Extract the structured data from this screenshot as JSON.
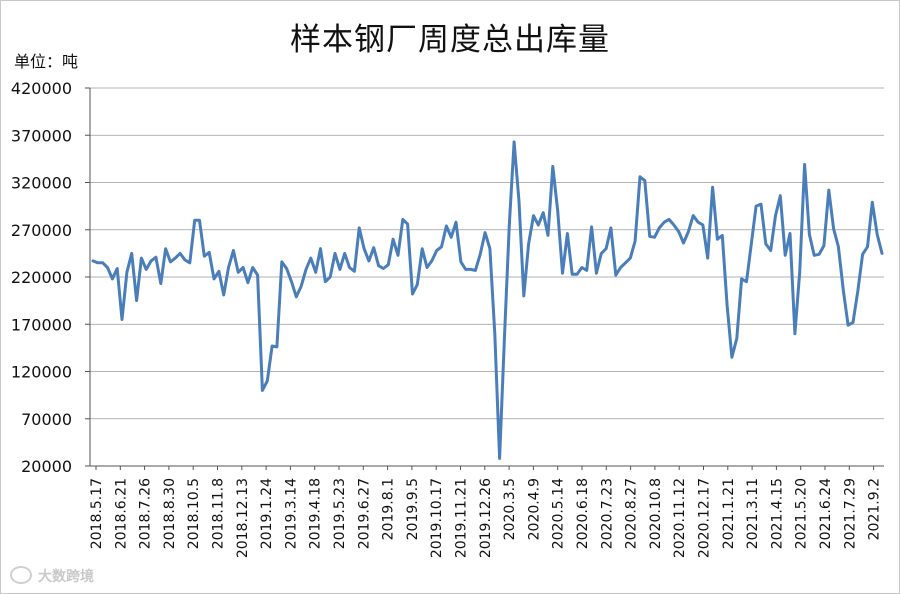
{
  "chart_data": {
    "type": "line",
    "title": "样本钢厂周度总出库量",
    "unit_label": "单位：吨",
    "xlabel": "",
    "ylabel": "",
    "ylim": [
      20000,
      420000
    ],
    "y_ticks": [
      "20000",
      "70000",
      "120000",
      "170000",
      "220000",
      "270000",
      "320000",
      "370000",
      "420000"
    ],
    "grid": "horizontal",
    "legend": "none",
    "line_color": "#4a7ebb",
    "x_tick_labels": [
      "2018.5.17",
      "2018.6.21",
      "2018.7.26",
      "2018.8.30",
      "2018.10.5",
      "2018.11.8",
      "2018.12.13",
      "2019.1.24",
      "2019.3.14",
      "2019.4.18",
      "2019.5.23",
      "2019.6.27",
      "2019.8.1",
      "2019.9.5",
      "2019.10.17",
      "2019.11.21",
      "2019.12.26",
      "2020.3.5",
      "2020.4.9",
      "2020.5.14",
      "2020.6.18",
      "2020.7.23",
      "2020.8.27",
      "2020.10.8",
      "2020.11.12",
      "2020.12.17",
      "2021.1.21",
      "2021.3.11",
      "2021.4.15",
      "2021.5.20",
      "2021.6.24",
      "2021.7.29",
      "2021.9.2"
    ],
    "series": [
      {
        "values": [
          237000,
          235000,
          235000,
          230000,
          218000,
          229000,
          175000,
          225000,
          245000,
          195000,
          240000,
          228000,
          237000,
          241000,
          213000,
          250000,
          236000,
          240000,
          245000,
          238000,
          235000,
          280000,
          280000,
          242000,
          246000,
          218000,
          226000,
          201000,
          230000,
          248000,
          225000,
          230000,
          214000,
          230000,
          222000,
          100000,
          110000,
          147000,
          146000,
          236000,
          229000,
          215000,
          199000,
          210000,
          228000,
          240000,
          225000,
          250000,
          215000,
          220000,
          245000,
          228000,
          245000,
          230000,
          226000,
          272000,
          250000,
          237000,
          251000,
          232000,
          229000,
          233000,
          260000,
          243000,
          281000,
          276000,
          202000,
          212000,
          250000,
          230000,
          237000,
          248000,
          252000,
          274000,
          262000,
          278000,
          236000,
          228000,
          228000,
          227000,
          244000,
          267000,
          250000,
          160000,
          28000,
          155000,
          275000,
          363000,
          300000,
          200000,
          255000,
          285000,
          275000,
          288000,
          264000,
          337000,
          290000,
          224000,
          266000,
          223000,
          223000,
          230000,
          227000,
          273000,
          224000,
          245000,
          250000,
          272000,
          222000,
          230000,
          235000,
          240000,
          258000,
          326000,
          322000,
          263000,
          262000,
          272000,
          278000,
          281000,
          275000,
          268000,
          256000,
          268000,
          285000,
          278000,
          275000,
          240000,
          315000,
          260000,
          264000,
          190000,
          135000,
          155000,
          218000,
          215000,
          255000,
          295000,
          297000,
          255000,
          248000,
          285000,
          306000,
          243000,
          266000,
          160000,
          225000,
          339000,
          265000,
          243000,
          244000,
          253000,
          312000,
          271000,
          252000,
          206000,
          169000,
          172000,
          205000,
          244000,
          252000,
          299000,
          265000,
          245000
        ]
      }
    ]
  },
  "watermark": {
    "text": "大数跨境"
  }
}
